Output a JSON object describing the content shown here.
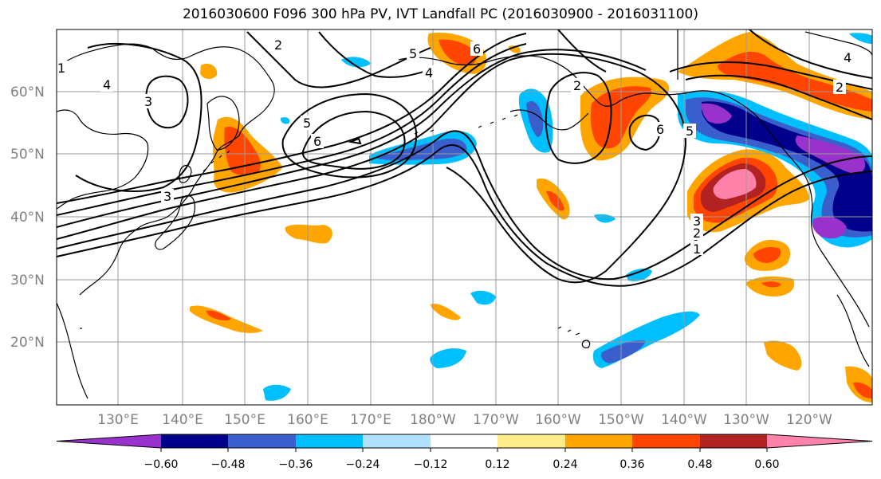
{
  "title": "2016030600 F096 300 hPa PV, IVT Landfall PC (2016030900 - 2016031100)",
  "lat_labels": [
    "60°N",
    "50°N",
    "40°N",
    "30°N",
    "20°N"
  ],
  "lon_labels": [
    "130°E",
    "140°E",
    "150°E",
    "160°E",
    "170°E",
    "180°W",
    "170°W",
    "160°W",
    "150°W",
    "140°W",
    "130°W",
    "120°W"
  ],
  "colorbar": {
    "colors": [
      "#9932cc",
      "#00008b",
      "#3a5fcd",
      "#00bfff",
      "#b0e2ff",
      "#ffffff",
      "#ffec8b",
      "#ffa500",
      "#ff4500",
      "#b22222",
      "#ff82ab"
    ],
    "tick_labels": [
      "−0.60",
      "−0.48",
      "−0.36",
      "−0.24",
      "−0.12",
      "0.12",
      "0.24",
      "0.36",
      "0.48",
      "0.60"
    ]
  },
  "contour_labels": [
    "1",
    "2",
    "3",
    "4",
    "5",
    "6",
    "2",
    "3",
    "6",
    "4",
    "5",
    "2",
    "6",
    "1",
    "2",
    "3",
    "4",
    "5"
  ]
}
